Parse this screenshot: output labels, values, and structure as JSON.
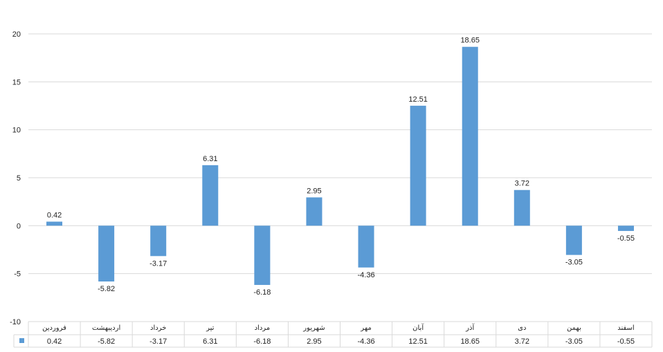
{
  "chart_data": {
    "type": "bar",
    "categories": [
      "فروردین",
      "اردیبهشت",
      "خرداد",
      "تیر",
      "مرداد",
      "شهریور",
      "مهر",
      "آبان",
      "آذر",
      "دی",
      "بهمن",
      "اسفند"
    ],
    "values": [
      0.42,
      -5.82,
      -3.17,
      6.31,
      -6.18,
      2.95,
      -4.36,
      12.51,
      18.65,
      3.72,
      -3.05,
      -0.55
    ],
    "value_labels": [
      "0.42",
      "-5.82",
      "-3.17",
      "6.31",
      "-6.18",
      "2.95",
      "-4.36",
      "12.51",
      "18.65",
      "3.72",
      "-3.05",
      "-0.55"
    ],
    "yticks": [
      "20",
      "15",
      "10",
      "5",
      "0",
      "-5",
      "-10"
    ],
    "ylim": [
      -10,
      20
    ],
    "grid": true,
    "data_table": true,
    "bar_color": "#5B9BD5"
  }
}
